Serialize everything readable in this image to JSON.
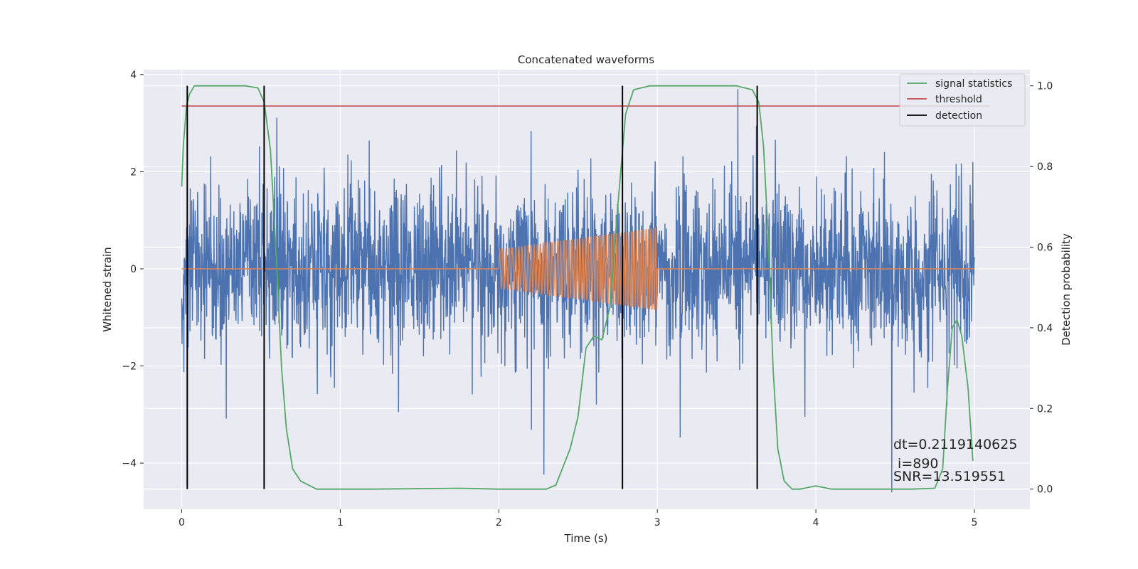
{
  "chart_data": {
    "type": "line",
    "title": "Concatenated waveforms",
    "xlabel": "Time (s)",
    "ylabel": "Whitened strain",
    "y2label": "Detection probability",
    "xlim": [
      -0.24,
      5.35
    ],
    "ylim": [
      -4.95,
      4.1
    ],
    "y2lim": [
      -0.05,
      1.04
    ],
    "xticks": [
      0,
      1,
      2,
      3,
      4,
      5
    ],
    "yticks": [
      -4,
      -2,
      0,
      2,
      4
    ],
    "y2ticks": [
      0.0,
      0.2,
      0.4,
      0.6,
      0.8,
      1.0
    ],
    "grid": true,
    "legend_position": "top-right",
    "colors": {
      "strain": "#4c72b0",
      "waveform": "#dd8452",
      "signal_statistics": "#55a868",
      "threshold": "#c44e52",
      "detection": "#000000",
      "plot_bg": "#eaeaf2",
      "grid": "#ffffff"
    },
    "series": [
      {
        "name": "",
        "axis": "left",
        "role": "strain",
        "description_type": "noise",
        "x_range": [
          0,
          5
        ],
        "amplitude_std": 0.85,
        "approx_extremes": [
          -4.6,
          3.7
        ]
      },
      {
        "name": "",
        "axis": "left",
        "role": "waveform",
        "x": [
          0,
          2.0,
          2.0,
          3.0,
          3.0,
          5.0
        ],
        "envelope": [
          0,
          0.4,
          0.4,
          0.85,
          0,
          0
        ]
      },
      {
        "name": "signal statistics",
        "axis": "right",
        "x": [
          0.0,
          0.01,
          0.03,
          0.05,
          0.08,
          0.1,
          0.2,
          0.4,
          0.48,
          0.52,
          0.56,
          0.6,
          0.63,
          0.66,
          0.7,
          0.75,
          0.85,
          1.2,
          1.75,
          2.0,
          2.3,
          2.36,
          2.4,
          2.45,
          2.5,
          2.55,
          2.6,
          2.65,
          2.7,
          2.75,
          2.8,
          2.85,
          2.95,
          3.2,
          3.5,
          3.6,
          3.64,
          3.67,
          3.7,
          3.73,
          3.76,
          3.8,
          3.85,
          3.9,
          4.0,
          4.1,
          4.3,
          4.6,
          4.75,
          4.8,
          4.83,
          4.86,
          4.89,
          4.92,
          4.96,
          4.99
        ],
        "y": [
          0.75,
          0.85,
          0.95,
          0.98,
          1.0,
          1.0,
          1.0,
          1.0,
          0.995,
          0.96,
          0.84,
          0.55,
          0.3,
          0.15,
          0.05,
          0.02,
          0.0,
          0.0,
          0.002,
          0.0,
          0.0,
          0.01,
          0.05,
          0.1,
          0.18,
          0.35,
          0.38,
          0.37,
          0.45,
          0.7,
          0.93,
          0.99,
          1.0,
          1.0,
          1.0,
          0.99,
          0.96,
          0.85,
          0.62,
          0.3,
          0.1,
          0.02,
          0.0,
          0.0,
          0.008,
          0.0,
          0.0,
          0.0,
          0.002,
          0.05,
          0.25,
          0.4,
          0.42,
          0.38,
          0.25,
          0.07
        ]
      },
      {
        "name": "threshold",
        "axis": "right",
        "x": [
          0,
          5.1
        ],
        "y": [
          0.95,
          0.95
        ]
      }
    ],
    "detections": {
      "name": "detection",
      "x": [
        0.035,
        0.52,
        2.78,
        3.63
      ]
    },
    "annotation": {
      "lines": [
        "dt=0.2119140625",
        " i=890",
        "SNR=13.519551"
      ]
    }
  }
}
